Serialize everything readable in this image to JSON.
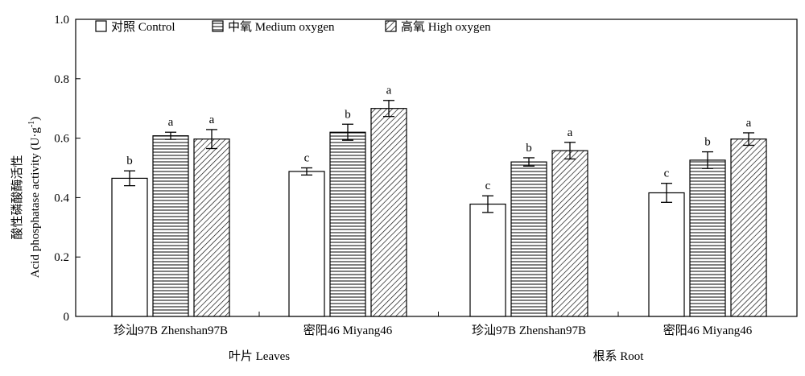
{
  "chart_data": {
    "type": "bar",
    "ylabel_cn": "酸性磷酸酶活性",
    "ylabel_en": "Acid phosphatase activity (U·g",
    "ylabel_sup": "-1",
    "ylabel_close": ")",
    "ylim": [
      0,
      1.0
    ],
    "yticks": [
      "0",
      "0.2",
      "0.4",
      "0.6",
      "0.8",
      "1.0"
    ],
    "ytick_values": [
      0,
      0.2,
      0.4,
      0.6,
      0.8,
      1.0
    ],
    "groups": [
      {
        "label": "叶片 Leaves",
        "categories": [
          "珍汕97B Zhenshan97B",
          "密阳46 Miyang46"
        ]
      },
      {
        "label": "根系 Root",
        "categories": [
          "珍汕97B Zhenshan97B",
          "密阳46 Miyang46"
        ]
      }
    ],
    "categories": [
      "珍汕97B Zhenshan97B",
      "密阳46 Miyang46",
      "珍汕97B Zhenshan97B",
      "密阳46 Miyang46"
    ],
    "series": [
      {
        "name": "对照 Control",
        "pattern": "white",
        "values": [
          0.465,
          0.488,
          0.378,
          0.416
        ],
        "errors": [
          0.025,
          0.012,
          0.028,
          0.032
        ],
        "letters": [
          "b",
          "c",
          "c",
          "c"
        ]
      },
      {
        "name": "中氧 Medium oxygen",
        "pattern": "horizontal",
        "values": [
          0.608,
          0.62,
          0.52,
          0.526
        ],
        "errors": [
          0.012,
          0.027,
          0.014,
          0.028
        ],
        "letters": [
          "a",
          "b",
          "b",
          "b"
        ]
      },
      {
        "name": "高氧 High oxygen",
        "pattern": "diagonal",
        "values": [
          0.597,
          0.7,
          0.558,
          0.597
        ],
        "errors": [
          0.032,
          0.027,
          0.028,
          0.021
        ],
        "letters": [
          "a",
          "a",
          "a",
          "a"
        ]
      }
    ],
    "legend_position": "top-left",
    "grid": false
  }
}
